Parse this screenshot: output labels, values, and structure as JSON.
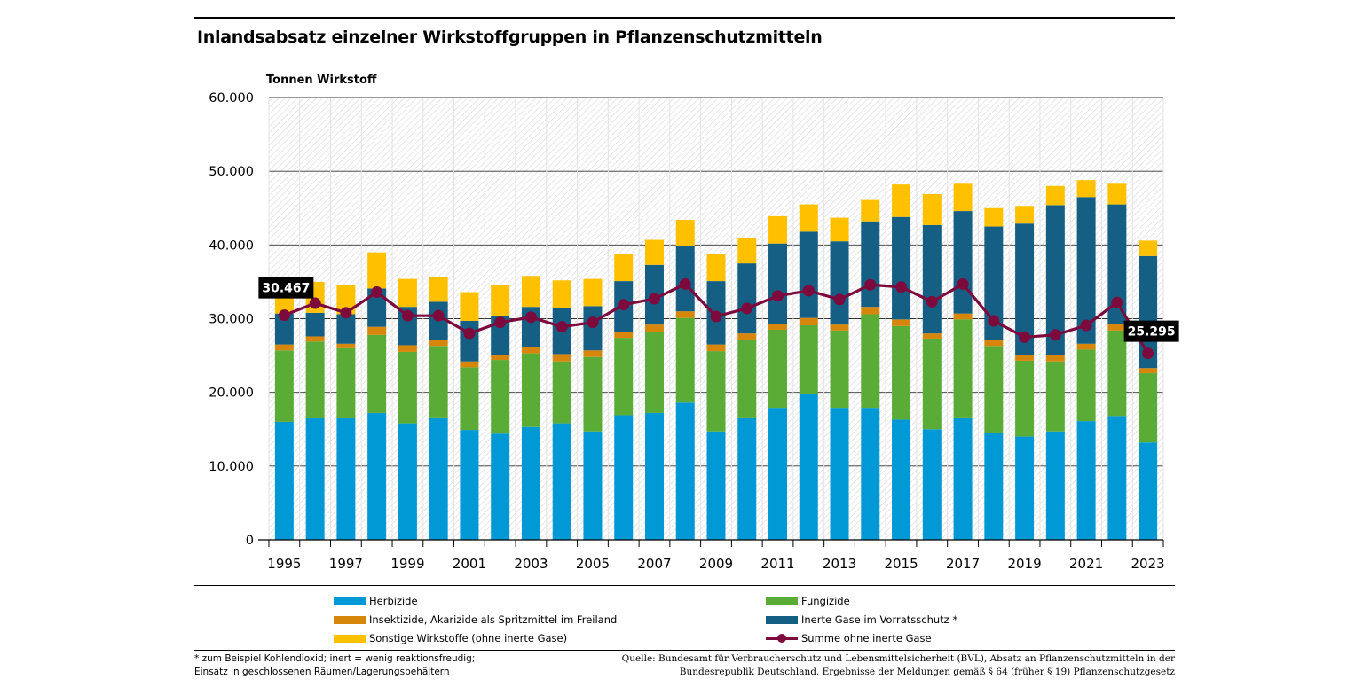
{
  "title": "Inlandsabsatz einzelner Wirkstoffgruppen in Pflanzenschutzmitteln",
  "colors": {
    "herbizide": "#0099d6",
    "fungizide": "#5aac37",
    "insektizide": "#d6860a",
    "inerte_gase": "#155f85",
    "sonstige": "#ffc000",
    "summe": "#7d0a3c"
  },
  "chart_data": {
    "type": "bar",
    "stacked": true,
    "ylabel": "Tonnen Wirkstoff",
    "ylim": [
      0,
      60000
    ],
    "yticks": [
      0,
      10000,
      20000,
      30000,
      40000,
      50000,
      60000
    ],
    "ytick_labels": [
      "0",
      "10.000",
      "20.000",
      "30.000",
      "40.000",
      "50.000",
      "60.000"
    ],
    "xtick_labels": [
      "1995",
      "1997",
      "1999",
      "2001",
      "2003",
      "2005",
      "2007",
      "2009",
      "2011",
      "2013",
      "2015",
      "2017",
      "2019",
      "2021",
      "2023"
    ],
    "grid": true,
    "categories": [
      1995,
      1996,
      1997,
      1998,
      1999,
      2000,
      2001,
      2002,
      2003,
      2004,
      2005,
      2006,
      2007,
      2008,
      2009,
      2010,
      2011,
      2012,
      2013,
      2014,
      2015,
      2016,
      2017,
      2018,
      2019,
      2020,
      2021,
      2022,
      2023
    ],
    "series": [
      {
        "name": "Herbizide",
        "key": "herbizide",
        "values": [
          16000,
          16500,
          16500,
          17200,
          15800,
          16600,
          14900,
          14400,
          15300,
          15800,
          14700,
          16900,
          17200,
          18600,
          14700,
          16600,
          17900,
          19800,
          17900,
          17900,
          16300,
          15000,
          16600,
          14500,
          14000,
          14700,
          16100,
          16800,
          13200
        ]
      },
      {
        "name": "Fungizide",
        "key": "fungizide",
        "values": [
          9700,
          10400,
          9500,
          10600,
          9700,
          9700,
          8500,
          10000,
          10000,
          8400,
          10100,
          10500,
          11000,
          11500,
          10900,
          10500,
          10600,
          9300,
          10500,
          12700,
          12700,
          12300,
          13300,
          11800,
          10300,
          9500,
          9700,
          11600,
          9400
        ]
      },
      {
        "name": "Insektizide, Akarizide als Spritzmittel im Freiland",
        "key": "insektizide",
        "values": [
          800,
          700,
          600,
          1100,
          900,
          800,
          800,
          700,
          800,
          1000,
          900,
          800,
          1000,
          900,
          900,
          900,
          800,
          1000,
          800,
          1000,
          900,
          700,
          800,
          800,
          800,
          900,
          800,
          900,
          700
        ]
      },
      {
        "name": "Inerte Gase im Vorratsschutz *",
        "key": "inerte_gase",
        "values": [
          4200,
          3200,
          4000,
          5200,
          5200,
          5200,
          5500,
          5300,
          5500,
          6200,
          6000,
          6900,
          8100,
          8800,
          8600,
          9500,
          10900,
          11700,
          11300,
          11600,
          13900,
          14700,
          13900,
          15400,
          17800,
          20300,
          19900,
          16200,
          15200
        ]
      },
      {
        "name": "Sonstige  Wirkstoffe (ohne inerte Gase)",
        "key": "sonstige",
        "values": [
          2300,
          4200,
          4000,
          4900,
          3800,
          3300,
          3900,
          4200,
          4200,
          3800,
          3700,
          3700,
          3400,
          3600,
          3700,
          3400,
          3700,
          3700,
          3200,
          2900,
          4400,
          4200,
          3700,
          2500,
          2400,
          2600,
          2300,
          2800,
          2100
        ]
      }
    ],
    "line": {
      "name": "Summe ohne inerte Gase",
      "key": "summe",
      "values": [
        30467,
        32100,
        30800,
        33600,
        30400,
        30400,
        28000,
        29500,
        30200,
        28900,
        29500,
        31900,
        32700,
        34700,
        30300,
        31400,
        33100,
        33800,
        32600,
        34600,
        34300,
        32300,
        34700,
        29700,
        27500,
        27800,
        29100,
        32200,
        25295
      ]
    },
    "annotations": [
      {
        "label": "30.467",
        "category": 1995
      },
      {
        "label": "25.295",
        "category": 2023
      }
    ]
  },
  "legend": {
    "herbizide": "Herbizide",
    "fungizide": "Fungizide",
    "insektizide": "Insektizide, Akarizide als Spritzmittel im Freiland",
    "inerte_gase": "Inerte Gase im Vorratsschutz *",
    "sonstige": "Sonstige  Wirkstoffe (ohne inerte Gase)",
    "summe": "Summe ohne inerte Gase"
  },
  "footnote": {
    "line1": "* zum Beispiel Kohlendioxid; inert = wenig reaktionsfreudig;",
    "line2": "Einsatz in geschlossenen Räumen/Lagerungsbehältern"
  },
  "source": {
    "line1": "Quelle: Bundesamt für Verbraucherschutz und Lebensmittelsicherheit (BVL), Absatz an Pflanzenschutzmitteln in der",
    "line2": "Bundesrepublik Deutschland. Ergebnisse der Meldungen gemäß § 64 (früher § 19) Pflanzenschutzgesetz"
  }
}
